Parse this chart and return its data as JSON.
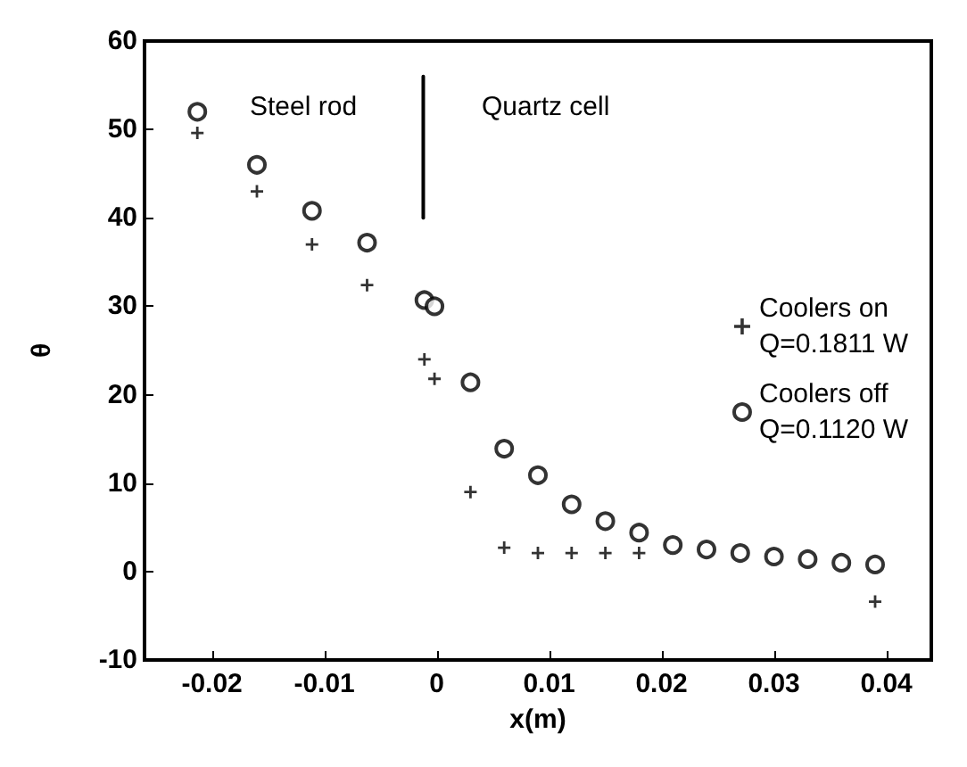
{
  "chart_data": {
    "type": "scatter",
    "xlabel": "x(m)",
    "ylabel": "θ",
    "xlim": [
      -0.026,
      0.044
    ],
    "xticks": [
      -0.02,
      -0.01,
      0,
      0.01,
      0.02,
      0.03,
      0.04
    ],
    "ylim": [
      -10,
      60
    ],
    "yticks": [
      -10,
      0,
      10,
      20,
      30,
      40,
      50,
      60
    ],
    "grid": false,
    "legend": "right",
    "series": [
      {
        "name": "Coolers on\nQ=0.1811 W",
        "color": "#000000",
        "marker": "cross",
        "x": [
          -0.0213,
          -0.016,
          -0.0111,
          -0.0062,
          -0.0011,
          -0.0002,
          0.003,
          0.006,
          0.009,
          0.012,
          0.015,
          0.018,
          0.021,
          0.024,
          0.027,
          0.03,
          0.033,
          0.036,
          0.039
        ],
        "values": [
          49.6,
          43,
          37,
          32.4,
          24,
          21.8,
          9,
          2.7,
          2.1,
          2.1,
          2.1,
          2.1,
          null,
          null,
          null,
          null,
          null,
          null,
          -3.4
        ]
      },
      {
        "name": "Coolers off\nQ=0.1120 W",
        "color": "#000000",
        "marker": "circle",
        "x": [
          -0.0213,
          -0.016,
          -0.0111,
          -0.0062,
          -0.0011,
          -0.0002,
          0.003,
          0.006,
          0.009,
          0.012,
          0.015,
          0.018,
          0.021,
          0.024,
          0.027,
          0.03,
          0.033,
          0.036,
          0.039
        ],
        "values": [
          52,
          46,
          40.8,
          37.2,
          30.7,
          30,
          21.4,
          13.9,
          10.9,
          7.6,
          5.7,
          4.4,
          3,
          2.5,
          2.1,
          1.7,
          1.4,
          1,
          0.8
        ]
      },
      {
        "type": "line",
        "color": "#000000",
        "marker": "none",
        "x": [
          -0.0012,
          -0.0012
        ],
        "values": [
          56,
          40
        ]
      }
    ],
    "annotations": [
      "Steel rod",
      "Quartz cell"
    ]
  }
}
